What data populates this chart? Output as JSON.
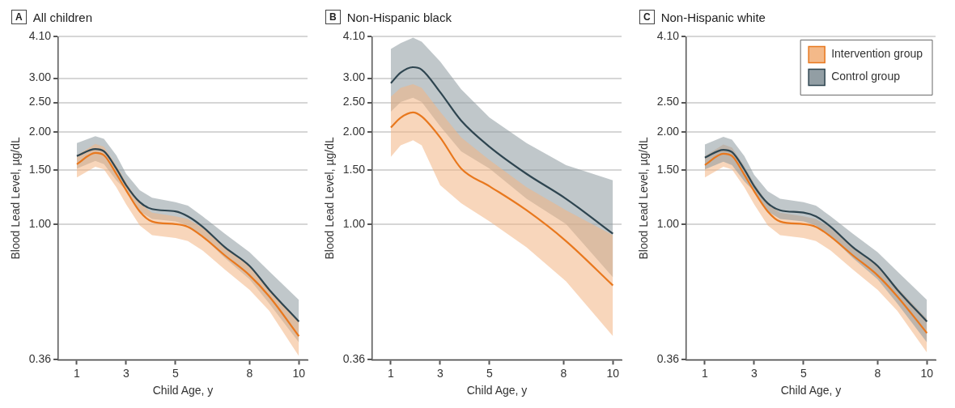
{
  "chart_data": [
    {
      "type": "line",
      "annotations": [
        "A"
      ],
      "title": "All children",
      "xlabel": "Child Age, y",
      "ylabel": "Blood Lead Level, µg/dL",
      "log": "y",
      "grid": "y",
      "legend": false,
      "marker": "none",
      "x": [
        1,
        1.75,
        2.1,
        2.6,
        3,
        3.55,
        4.05,
        5,
        5.5,
        6.1,
        7,
        8,
        8.8,
        10
      ],
      "xlim": [
        0.25,
        10.35
      ],
      "xticks": [
        1,
        3,
        5,
        8,
        10
      ],
      "ylim": [
        0.36,
        4.1
      ],
      "yticks": [
        {
          "value": 0.36,
          "label": "0.36"
        },
        {
          "value": 1,
          "label": "1.00"
        },
        {
          "value": 1.5,
          "label": "1.50"
        },
        {
          "value": 2,
          "label": "2.00"
        },
        {
          "value": 2.5,
          "label": "2.50"
        },
        {
          "value": 3,
          "label": "3.00"
        },
        {
          "value": 4.1,
          "label": "4.10"
        }
      ],
      "series": [
        {
          "color": "#2e4550",
          "values": [
            1.67,
            1.76,
            1.73,
            1.52,
            1.34,
            1.18,
            1.12,
            1.1,
            1.06,
            0.98,
            0.84,
            0.73,
            0.61,
            0.48
          ],
          "upper": [
            1.84,
            1.94,
            1.9,
            1.68,
            1.46,
            1.29,
            1.22,
            1.18,
            1.15,
            1.06,
            0.93,
            0.81,
            0.7,
            0.565
          ],
          "lower": [
            1.52,
            1.61,
            1.57,
            1.39,
            1.29,
            1.1,
            1.04,
            1.02,
            0.99,
            0.91,
            0.775,
            0.66,
            0.55,
            0.41
          ]
        },
        {
          "color": "#e8781e",
          "values": [
            1.57,
            1.71,
            1.68,
            1.46,
            1.29,
            1.1,
            1.02,
            1,
            0.98,
            0.91,
            0.79,
            0.68,
            0.58,
            0.43
          ],
          "upper": [
            1.68,
            1.83,
            1.79,
            1.56,
            1.37,
            1.17,
            1.09,
            1.06,
            1.04,
            0.97,
            0.84,
            0.73,
            0.61,
            0.48
          ],
          "lower": [
            1.42,
            1.54,
            1.51,
            1.32,
            1.16,
            0.99,
            0.92,
            0.9,
            0.88,
            0.82,
            0.71,
            0.61,
            0.52,
            0.37
          ]
        }
      ]
    },
    {
      "type": "line",
      "annotations": [
        "B"
      ],
      "title": "Non-Hispanic black",
      "xlabel": "Child Age, y",
      "ylabel": "Blood Lead Level, µg/dL",
      "log": "y",
      "grid": "y",
      "legend": false,
      "marker": "none",
      "x": [
        1,
        1.4,
        1.9,
        2.25,
        3,
        3.85,
        5,
        6.5,
        8.1,
        10
      ],
      "xlim": [
        0.25,
        10.35
      ],
      "xticks": [
        1,
        3,
        5,
        8,
        10
      ],
      "ylim": [
        0.36,
        4.1
      ],
      "yticks": [
        {
          "value": 0.36,
          "label": "0.36"
        },
        {
          "value": 1,
          "label": "1.00"
        },
        {
          "value": 1.5,
          "label": "1.50"
        },
        {
          "value": 2,
          "label": "2.00"
        },
        {
          "value": 2.5,
          "label": "2.50"
        },
        {
          "value": 3,
          "label": "3.00"
        },
        {
          "value": 4.1,
          "label": "4.10"
        }
      ],
      "series": [
        {
          "color": "#2e4550",
          "values": [
            2.89,
            3.13,
            3.26,
            3.2,
            2.7,
            2.18,
            1.79,
            1.46,
            1.21,
            0.93
          ],
          "upper": [
            3.74,
            3.91,
            4.07,
            3.95,
            3.4,
            2.76,
            2.23,
            1.84,
            1.56,
            1.39
          ],
          "lower": [
            2.33,
            2.51,
            2.59,
            2.51,
            2.09,
            1.73,
            1.52,
            1.21,
            1,
            0.67
          ]
        },
        {
          "color": "#e8781e",
          "values": [
            2.07,
            2.23,
            2.32,
            2.25,
            1.92,
            1.52,
            1.33,
            1.11,
            0.88,
            0.63
          ],
          "upper": [
            2.61,
            2.79,
            2.87,
            2.79,
            2.33,
            1.92,
            1.62,
            1.32,
            1.11,
            0.92
          ],
          "lower": [
            1.66,
            1.81,
            1.88,
            1.81,
            1.34,
            1.17,
            1.02,
            0.84,
            0.65,
            0.43
          ]
        }
      ]
    },
    {
      "type": "line",
      "annotations": [
        "C"
      ],
      "title": "Non-Hispanic white",
      "xlabel": "Child Age, y",
      "ylabel": "Blood Lead Level, µg/dL",
      "log": "y",
      "grid": "y",
      "legend": "top right",
      "marker": "none",
      "x": [
        1,
        1.75,
        2.1,
        2.6,
        3,
        3.55,
        4.05,
        5,
        5.5,
        6.1,
        7,
        8,
        8.8,
        10
      ],
      "xlim": [
        0.25,
        10.35
      ],
      "xticks": [
        1,
        3,
        5,
        8,
        10
      ],
      "ylim": [
        0.36,
        4.1
      ],
      "yticks": [
        {
          "value": 0.36,
          "label": "0.36"
        },
        {
          "value": 1,
          "label": "1.00"
        },
        {
          "value": 1.5,
          "label": "1.50"
        },
        {
          "value": 2,
          "label": "2.00"
        },
        {
          "value": 2.5,
          "label": "2.50"
        },
        {
          "value": 4.1,
          "label": "4.10"
        }
      ],
      "series": [
        {
          "name": "Intervention group",
          "color": "#e8781e",
          "values": [
            1.56,
            1.7,
            1.67,
            1.45,
            1.28,
            1.1,
            1.02,
            1,
            0.98,
            0.91,
            0.79,
            0.68,
            0.58,
            0.44
          ],
          "upper": [
            1.67,
            1.82,
            1.78,
            1.55,
            1.36,
            1.17,
            1.09,
            1.06,
            1.04,
            0.97,
            0.84,
            0.73,
            0.62,
            0.49
          ],
          "lower": [
            1.42,
            1.54,
            1.51,
            1.32,
            1.16,
            0.99,
            0.92,
            0.9,
            0.88,
            0.82,
            0.71,
            0.61,
            0.52,
            0.38
          ]
        },
        {
          "name": "Control group",
          "color": "#2e4550",
          "values": [
            1.65,
            1.75,
            1.72,
            1.51,
            1.33,
            1.17,
            1.11,
            1.09,
            1.06,
            0.98,
            0.84,
            0.73,
            0.61,
            0.48
          ],
          "upper": [
            1.82,
            1.93,
            1.89,
            1.67,
            1.45,
            1.28,
            1.21,
            1.18,
            1.15,
            1.06,
            0.93,
            0.81,
            0.7,
            0.565
          ],
          "lower": [
            1.51,
            1.6,
            1.56,
            1.38,
            1.28,
            1.1,
            1.04,
            1.02,
            0.99,
            0.91,
            0.775,
            0.66,
            0.55,
            0.41
          ]
        }
      ]
    }
  ]
}
